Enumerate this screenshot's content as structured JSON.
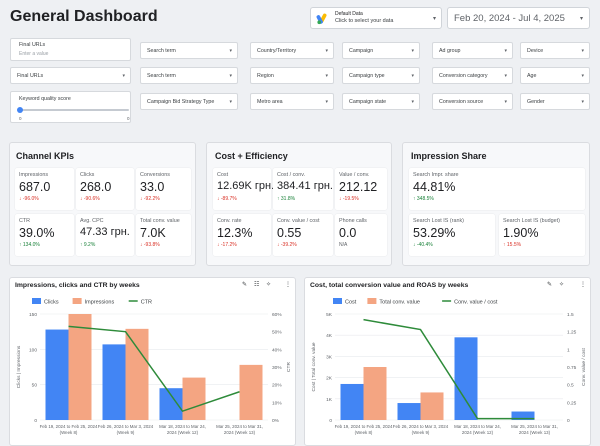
{
  "header": {
    "title": "General Dashboard",
    "datasource_title": "Default Data",
    "datasource_sub": "Click to select your data",
    "date_range": "Feb 20, 2024 - Jul 4, 2025"
  },
  "filters": {
    "final_urls_1": {
      "label": "Final URLs",
      "placeholder": "Enter a value"
    },
    "final_urls_2": "Final URLs",
    "keyword_quality": {
      "label": "Keyword quality score",
      "min": "0",
      "max": "0"
    },
    "search_term_1": "Search term",
    "search_term_2": "Search term",
    "bid_strategy": "Campaign Bid Strategy Type",
    "country": "Country/Territory",
    "region": "Region",
    "metro": "Metro area",
    "campaign": "Campaign",
    "campaign_type": "Campaign type",
    "campaign_state": "Campaign state",
    "ad_group": "Ad group",
    "conv_category": "Conversion category",
    "conv_source": "Conversion source",
    "device": "Device",
    "age": "Age",
    "gender": "Gender"
  },
  "channel_kpis": {
    "title": "Channel KPIs",
    "items": [
      {
        "name": "Impressions",
        "value": "687.0",
        "delta": "↓ -96.0%",
        "trend": "neg"
      },
      {
        "name": "Clicks",
        "value": "268.0",
        "delta": "↓ -90.6%",
        "trend": "neg"
      },
      {
        "name": "Conversions",
        "value": "33.0",
        "delta": "↓ -92.2%",
        "trend": "neg"
      },
      {
        "name": "CTR",
        "value": "39.0%",
        "delta": "↑ 134.0%",
        "trend": "pos"
      },
      {
        "name": "Avg. CPC",
        "value": "47.33 грн.",
        "delta": "↑ 9.2%",
        "trend": "pos"
      },
      {
        "name": "Total conv. value",
        "value": "7.0K",
        "delta": "↓ -93.8%",
        "trend": "neg"
      }
    ]
  },
  "cost_efficiency": {
    "title": "Cost + Efficiency",
    "items": [
      {
        "name": "Cost",
        "value": "12.69K грн.",
        "delta": "↓ -89.7%",
        "trend": "neg"
      },
      {
        "name": "Cost / conv.",
        "value": "384.41 грн.",
        "delta": "↑ 31.8%",
        "trend": "pos"
      },
      {
        "name": "Value / conv.",
        "value": "212.12",
        "delta": "↓ -19.5%",
        "trend": "neg"
      },
      {
        "name": "Conv. rate",
        "value": "12.3%",
        "delta": "↓ -17.2%",
        "trend": "neg"
      },
      {
        "name": "Conv. value / cost",
        "value": "0.55",
        "delta": "↓ -39.2%",
        "trend": "neg"
      },
      {
        "name": "Phone calls",
        "value": "0.0",
        "delta": "N/A",
        "trend": "neu"
      }
    ]
  },
  "impression_share": {
    "title": "Impression Share",
    "items": [
      {
        "name": "Search Impr. share",
        "value": "44.81%",
        "delta": "↑ 348.5%",
        "trend": "pos"
      },
      {
        "name": "Search Lost IS (rank)",
        "value": "53.29%",
        "delta": "↓ -40.4%",
        "trend": "pos"
      },
      {
        "name": "Search Lost IS (budget)",
        "value": "1.90%",
        "delta": "↑ 15.5%",
        "trend": "neg"
      }
    ]
  },
  "colors": {
    "blue": "#4285f4",
    "salmon": "#f4a582",
    "green": "#2e8b3a"
  },
  "chart_data": [
    {
      "type": "bar",
      "title": "Impressions, clicks and CTR by weeks",
      "categories": [
        "Feb 19, 2024 to Feb 25, 2024 (Week 8)",
        "Feb 26, 2024 to Mar 3, 2024 (Week 9)",
        "Mar 18, 2024 to Mar 24, 2024 (Week 12)",
        "Mar 25, 2024 to Mar 31, 2024 (Week 13)"
      ],
      "category_lines": [
        [
          "Feb 19, 2024 to Feb 25, 2024",
          "(Week 8)"
        ],
        [
          "Feb 26, 2024 to Mar 3, 2024",
          "(Week 9)"
        ],
        [
          "Mar 18, 2024 to Mar 24,",
          "2024 (Week 12)"
        ],
        [
          "Mar 25, 2024 to Mar 31,",
          "2024 (Week 13)"
        ]
      ],
      "series": [
        {
          "name": "Clicks",
          "kind": "bar",
          "axis": "left",
          "values": [
            128,
            107,
            45,
            0
          ]
        },
        {
          "name": "Impressions",
          "kind": "bar",
          "axis": "left",
          "values": [
            150,
            129,
            60,
            78
          ]
        },
        {
          "name": "CTR",
          "kind": "line",
          "axis": "right",
          "values": [
            0.53,
            0.5,
            0.05,
            0.16
          ]
        }
      ],
      "ylabel": "Clicks | Impressions",
      "y2label": "CTR",
      "ylim": [
        0,
        150
      ],
      "yticks": [
        "150",
        "100",
        "50",
        "0"
      ],
      "y2lim": [
        0,
        0.6
      ],
      "y2ticks": [
        "60%",
        "50%",
        "40%",
        "30%",
        "20%",
        "10%",
        "0%"
      ]
    },
    {
      "type": "bar",
      "title": "Cost, total conversion value and ROAS by weeks",
      "categories": [
        "Feb 19, 2024 to Feb 25, 2024 (Week 8)",
        "Feb 26, 2024 to Mar 3, 2024 (Week 9)",
        "Mar 18, 2024 to Mar 24, 2024 (Week 12)",
        "Mar 25, 2024 to Mar 31, 2024 (Week 13)"
      ],
      "category_lines": [
        [
          "Feb 19, 2024 to Feb 25, 2024",
          "(Week 8)"
        ],
        [
          "Feb 26, 2024 to Mar 3, 2024",
          "(Week 9)"
        ],
        [
          "Mar 18, 2024 to Mar 24,",
          "2024 (Week 12)"
        ],
        [
          "Mar 25, 2024 to Mar 31,",
          "2024 (Week 13)"
        ]
      ],
      "series": [
        {
          "name": "Cost",
          "kind": "bar",
          "axis": "left",
          "values": [
            1700,
            800,
            3900,
            400
          ]
        },
        {
          "name": "Total conv. value",
          "kind": "bar",
          "axis": "left",
          "values": [
            2500,
            1300,
            0,
            0
          ]
        },
        {
          "name": "Conv. value / cost",
          "kind": "line",
          "axis": "right",
          "values": [
            1.42,
            1.28,
            0.02,
            0.02
          ]
        }
      ],
      "ylabel": "Cost | Total conv. value",
      "y2label": "Conv. value / cost",
      "ylim": [
        0,
        5000
      ],
      "yticks": [
        "5K",
        "4K",
        "3K",
        "2K",
        "1K",
        "0"
      ],
      "y2lim": [
        0,
        1.5
      ],
      "y2ticks": [
        "1.5",
        "1.25",
        "1",
        "0.75",
        "0.5",
        "0.25",
        "0"
      ]
    }
  ]
}
